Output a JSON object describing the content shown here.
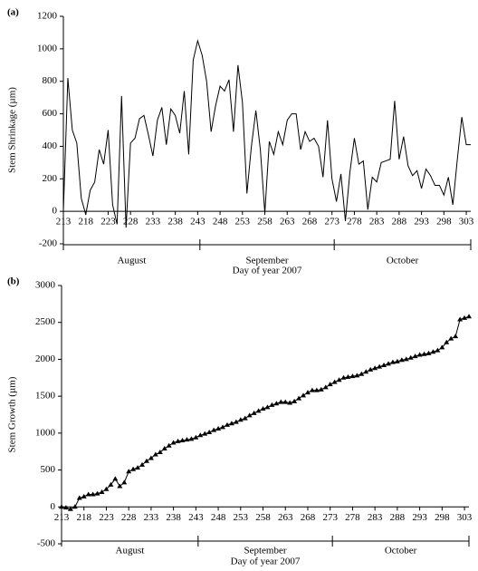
{
  "chart_data": [
    {
      "type": "line",
      "panel_label": "(a)",
      "y_label": "Stem Shrinkage (µm)",
      "x_label": "Day of year 2007",
      "color": "#000000",
      "marker": "none",
      "x": [
        213,
        214,
        215,
        216,
        217,
        218,
        219,
        220,
        221,
        222,
        223,
        224,
        225,
        226,
        227,
        228,
        229,
        230,
        231,
        232,
        233,
        234,
        235,
        236,
        237,
        238,
        239,
        240,
        241,
        242,
        243,
        244,
        245,
        246,
        247,
        248,
        249,
        250,
        251,
        252,
        253,
        254,
        255,
        256,
        257,
        258,
        259,
        260,
        261,
        262,
        263,
        264,
        265,
        266,
        267,
        268,
        269,
        270,
        271,
        272,
        273,
        274,
        275,
        276,
        277,
        278,
        279,
        280,
        281,
        282,
        283,
        284,
        285,
        286,
        287,
        288,
        289,
        290,
        291,
        292,
        293,
        294,
        295,
        296,
        297,
        298,
        299,
        300,
        301,
        302,
        303,
        304
      ],
      "values": [
        0,
        820,
        500,
        420,
        80,
        -20,
        130,
        180,
        380,
        290,
        500,
        40,
        -80,
        710,
        -100,
        420,
        450,
        570,
        590,
        470,
        340,
        560,
        640,
        410,
        630,
        590,
        480,
        740,
        350,
        930,
        1050,
        960,
        800,
        490,
        650,
        770,
        740,
        810,
        490,
        900,
        670,
        110,
        400,
        620,
        380,
        -10,
        430,
        350,
        490,
        410,
        560,
        600,
        600,
        380,
        490,
        430,
        450,
        400,
        210,
        560,
        200,
        60,
        230,
        -60,
        240,
        450,
        290,
        310,
        10,
        210,
        180,
        300,
        310,
        320,
        680,
        320,
        460,
        280,
        220,
        250,
        140,
        260,
        220,
        160,
        160,
        100,
        210,
        40,
        320,
        580,
        410,
        410
      ],
      "xlim": [
        213,
        304
      ],
      "xticks": [
        213,
        218,
        223,
        228,
        233,
        238,
        243,
        248,
        253,
        258,
        263,
        268,
        273,
        278,
        283,
        288,
        293,
        298,
        303
      ],
      "ylim": [
        -200,
        1200
      ],
      "yticks": [
        -200,
        0,
        200,
        400,
        600,
        800,
        1000,
        1200
      ],
      "months": [
        "August",
        "September",
        "October"
      ],
      "month_edges": [
        213,
        243.5,
        273.5,
        304
      ]
    },
    {
      "type": "line",
      "panel_label": "(b)",
      "y_label": "Stem Growth (µm)",
      "x_label": "Day of year 2007",
      "color": "#000000",
      "marker": "triangle",
      "x": [
        213,
        214,
        215,
        216,
        217,
        218,
        219,
        220,
        221,
        222,
        223,
        224,
        225,
        226,
        227,
        228,
        229,
        230,
        231,
        232,
        233,
        234,
        235,
        236,
        237,
        238,
        239,
        240,
        241,
        242,
        243,
        244,
        245,
        246,
        247,
        248,
        249,
        250,
        251,
        252,
        253,
        254,
        255,
        256,
        257,
        258,
        259,
        260,
        261,
        262,
        263,
        264,
        265,
        266,
        267,
        268,
        269,
        270,
        271,
        272,
        273,
        274,
        275,
        276,
        277,
        278,
        279,
        280,
        281,
        282,
        283,
        284,
        285,
        286,
        287,
        288,
        289,
        290,
        291,
        292,
        293,
        294,
        295,
        296,
        297,
        298,
        299,
        300,
        301,
        302,
        303,
        304
      ],
      "values": [
        0,
        -10,
        -30,
        0,
        120,
        140,
        170,
        170,
        180,
        200,
        240,
        300,
        380,
        280,
        330,
        480,
        510,
        530,
        570,
        620,
        660,
        710,
        740,
        790,
        830,
        870,
        890,
        900,
        910,
        920,
        940,
        970,
        990,
        1010,
        1040,
        1060,
        1080,
        1110,
        1130,
        1150,
        1180,
        1200,
        1240,
        1270,
        1300,
        1330,
        1350,
        1380,
        1400,
        1420,
        1420,
        1410,
        1430,
        1470,
        1510,
        1550,
        1580,
        1580,
        1590,
        1620,
        1660,
        1690,
        1720,
        1750,
        1760,
        1770,
        1780,
        1800,
        1830,
        1860,
        1880,
        1900,
        1920,
        1940,
        1960,
        1970,
        1990,
        2000,
        2020,
        2040,
        2060,
        2070,
        2080,
        2100,
        2120,
        2160,
        2230,
        2280,
        2310,
        2540,
        2560,
        2580
      ],
      "xlim": [
        213,
        304
      ],
      "xticks": [
        213,
        218,
        223,
        228,
        233,
        238,
        243,
        248,
        253,
        258,
        263,
        268,
        273,
        278,
        283,
        288,
        293,
        298,
        303
      ],
      "ylim": [
        -500,
        3000
      ],
      "yticks": [
        -500,
        0,
        500,
        1000,
        1500,
        2000,
        2500,
        3000
      ],
      "months": [
        "August",
        "September",
        "October"
      ],
      "month_edges": [
        213,
        243.5,
        273.5,
        304
      ]
    }
  ]
}
